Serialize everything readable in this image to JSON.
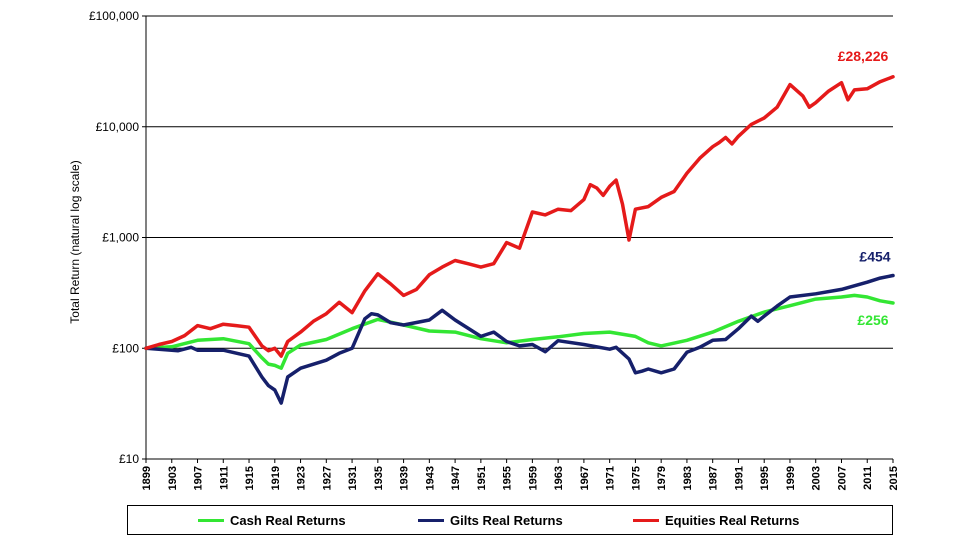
{
  "chart_data": {
    "type": "line",
    "title": "",
    "xlabel": "",
    "ylabel": "Total Return (natural log scale)",
    "yscale": "log",
    "ylim": [
      10,
      100000
    ],
    "y_ticks": [
      {
        "value": 10,
        "label": "£10"
      },
      {
        "value": 100,
        "label": "£100"
      },
      {
        "value": 1000,
        "label": "£1,000"
      },
      {
        "value": 10000,
        "label": "£10,000"
      },
      {
        "value": 100000,
        "label": "£100,000"
      }
    ],
    "xlim": [
      1899,
      2015
    ],
    "x_tick_labels": [
      "1899",
      "1903",
      "1907",
      "1911",
      "1915",
      "1919",
      "1923",
      "1927",
      "1931",
      "1935",
      "1939",
      "1943",
      "1947",
      "1951",
      "1955",
      "1959",
      "1963",
      "1967",
      "1971",
      "1975",
      "1979",
      "1983",
      "1987",
      "1991",
      "1995",
      "1999",
      "2003",
      "2007",
      "2011",
      "2015"
    ],
    "grid": "horizontal major",
    "legend_position": "bottom",
    "series": [
      {
        "name": "Cash Real Returns",
        "color": "#33e633",
        "end_label": "£256",
        "points": [
          [
            1899,
            100
          ],
          [
            1903,
            103
          ],
          [
            1907,
            118
          ],
          [
            1911,
            122
          ],
          [
            1915,
            110
          ],
          [
            1917,
            82
          ],
          [
            1918,
            72
          ],
          [
            1919,
            70
          ],
          [
            1920,
            66
          ],
          [
            1921,
            90
          ],
          [
            1923,
            107
          ],
          [
            1927,
            120
          ],
          [
            1931,
            150
          ],
          [
            1935,
            182
          ],
          [
            1939,
            162
          ],
          [
            1943,
            143
          ],
          [
            1947,
            140
          ],
          [
            1951,
            122
          ],
          [
            1955,
            112
          ],
          [
            1959,
            120
          ],
          [
            1963,
            127
          ],
          [
            1967,
            136
          ],
          [
            1971,
            140
          ],
          [
            1975,
            128
          ],
          [
            1977,
            112
          ],
          [
            1979,
            105
          ],
          [
            1983,
            118
          ],
          [
            1987,
            140
          ],
          [
            1991,
            175
          ],
          [
            1995,
            212
          ],
          [
            1999,
            242
          ],
          [
            2003,
            278
          ],
          [
            2007,
            290
          ],
          [
            2009,
            300
          ],
          [
            2011,
            290
          ],
          [
            2013,
            268
          ],
          [
            2015,
            256
          ]
        ]
      },
      {
        "name": "Gilts Real Returns",
        "color": "#16206b",
        "end_label": "£454",
        "points": [
          [
            1899,
            100
          ],
          [
            1902,
            97
          ],
          [
            1904,
            95
          ],
          [
            1906,
            102
          ],
          [
            1907,
            96
          ],
          [
            1911,
            96
          ],
          [
            1915,
            85
          ],
          [
            1917,
            55
          ],
          [
            1918,
            46
          ],
          [
            1919,
            42
          ],
          [
            1920,
            32
          ],
          [
            1921,
            55
          ],
          [
            1923,
            66
          ],
          [
            1927,
            78
          ],
          [
            1929,
            90
          ],
          [
            1931,
            100
          ],
          [
            1933,
            185
          ],
          [
            1934,
            205
          ],
          [
            1935,
            200
          ],
          [
            1937,
            170
          ],
          [
            1939,
            162
          ],
          [
            1943,
            180
          ],
          [
            1945,
            220
          ],
          [
            1947,
            180
          ],
          [
            1951,
            128
          ],
          [
            1953,
            140
          ],
          [
            1955,
            115
          ],
          [
            1957,
            105
          ],
          [
            1959,
            108
          ],
          [
            1961,
            93
          ],
          [
            1963,
            117
          ],
          [
            1967,
            108
          ],
          [
            1971,
            98
          ],
          [
            1972,
            102
          ],
          [
            1974,
            80
          ],
          [
            1975,
            60
          ],
          [
            1976,
            62
          ],
          [
            1977,
            65
          ],
          [
            1979,
            60
          ],
          [
            1981,
            65
          ],
          [
            1983,
            92
          ],
          [
            1985,
            102
          ],
          [
            1987,
            118
          ],
          [
            1989,
            120
          ],
          [
            1991,
            150
          ],
          [
            1993,
            195
          ],
          [
            1994,
            175
          ],
          [
            1995,
            195
          ],
          [
            1997,
            240
          ],
          [
            1999,
            290
          ],
          [
            2003,
            310
          ],
          [
            2007,
            340
          ],
          [
            2011,
            395
          ],
          [
            2013,
            430
          ],
          [
            2015,
            454
          ]
        ]
      },
      {
        "name": "Equities Real Returns",
        "color": "#e51a1a",
        "end_label": "£28,226",
        "points": [
          [
            1899,
            100
          ],
          [
            1901,
            108
          ],
          [
            1903,
            115
          ],
          [
            1905,
            130
          ],
          [
            1907,
            160
          ],
          [
            1909,
            150
          ],
          [
            1911,
            165
          ],
          [
            1913,
            160
          ],
          [
            1915,
            155
          ],
          [
            1917,
            105
          ],
          [
            1918,
            95
          ],
          [
            1919,
            100
          ],
          [
            1920,
            85
          ],
          [
            1921,
            115
          ],
          [
            1923,
            140
          ],
          [
            1925,
            175
          ],
          [
            1927,
            205
          ],
          [
            1929,
            260
          ],
          [
            1931,
            210
          ],
          [
            1933,
            330
          ],
          [
            1935,
            470
          ],
          [
            1937,
            380
          ],
          [
            1939,
            300
          ],
          [
            1941,
            340
          ],
          [
            1943,
            460
          ],
          [
            1945,
            540
          ],
          [
            1947,
            620
          ],
          [
            1949,
            580
          ],
          [
            1951,
            540
          ],
          [
            1953,
            580
          ],
          [
            1955,
            900
          ],
          [
            1957,
            800
          ],
          [
            1959,
            1700
          ],
          [
            1961,
            1600
          ],
          [
            1963,
            1800
          ],
          [
            1965,
            1750
          ],
          [
            1967,
            2200
          ],
          [
            1968,
            3000
          ],
          [
            1969,
            2800
          ],
          [
            1970,
            2400
          ],
          [
            1971,
            2900
          ],
          [
            1972,
            3300
          ],
          [
            1973,
            2000
          ],
          [
            1974,
            950
          ],
          [
            1975,
            1800
          ],
          [
            1977,
            1900
          ],
          [
            1979,
            2300
          ],
          [
            1981,
            2600
          ],
          [
            1983,
            3800
          ],
          [
            1985,
            5200
          ],
          [
            1987,
            6600
          ],
          [
            1988,
            7200
          ],
          [
            1989,
            8000
          ],
          [
            1990,
            7000
          ],
          [
            1991,
            8200
          ],
          [
            1993,
            10500
          ],
          [
            1995,
            12000
          ],
          [
            1997,
            15000
          ],
          [
            1999,
            24000
          ],
          [
            2001,
            19000
          ],
          [
            2002,
            15000
          ],
          [
            2003,
            16500
          ],
          [
            2005,
            21000
          ],
          [
            2007,
            25000
          ],
          [
            2008,
            17500
          ],
          [
            2009,
            21500
          ],
          [
            2011,
            22000
          ],
          [
            2013,
            25500
          ],
          [
            2015,
            28226
          ]
        ]
      }
    ]
  }
}
